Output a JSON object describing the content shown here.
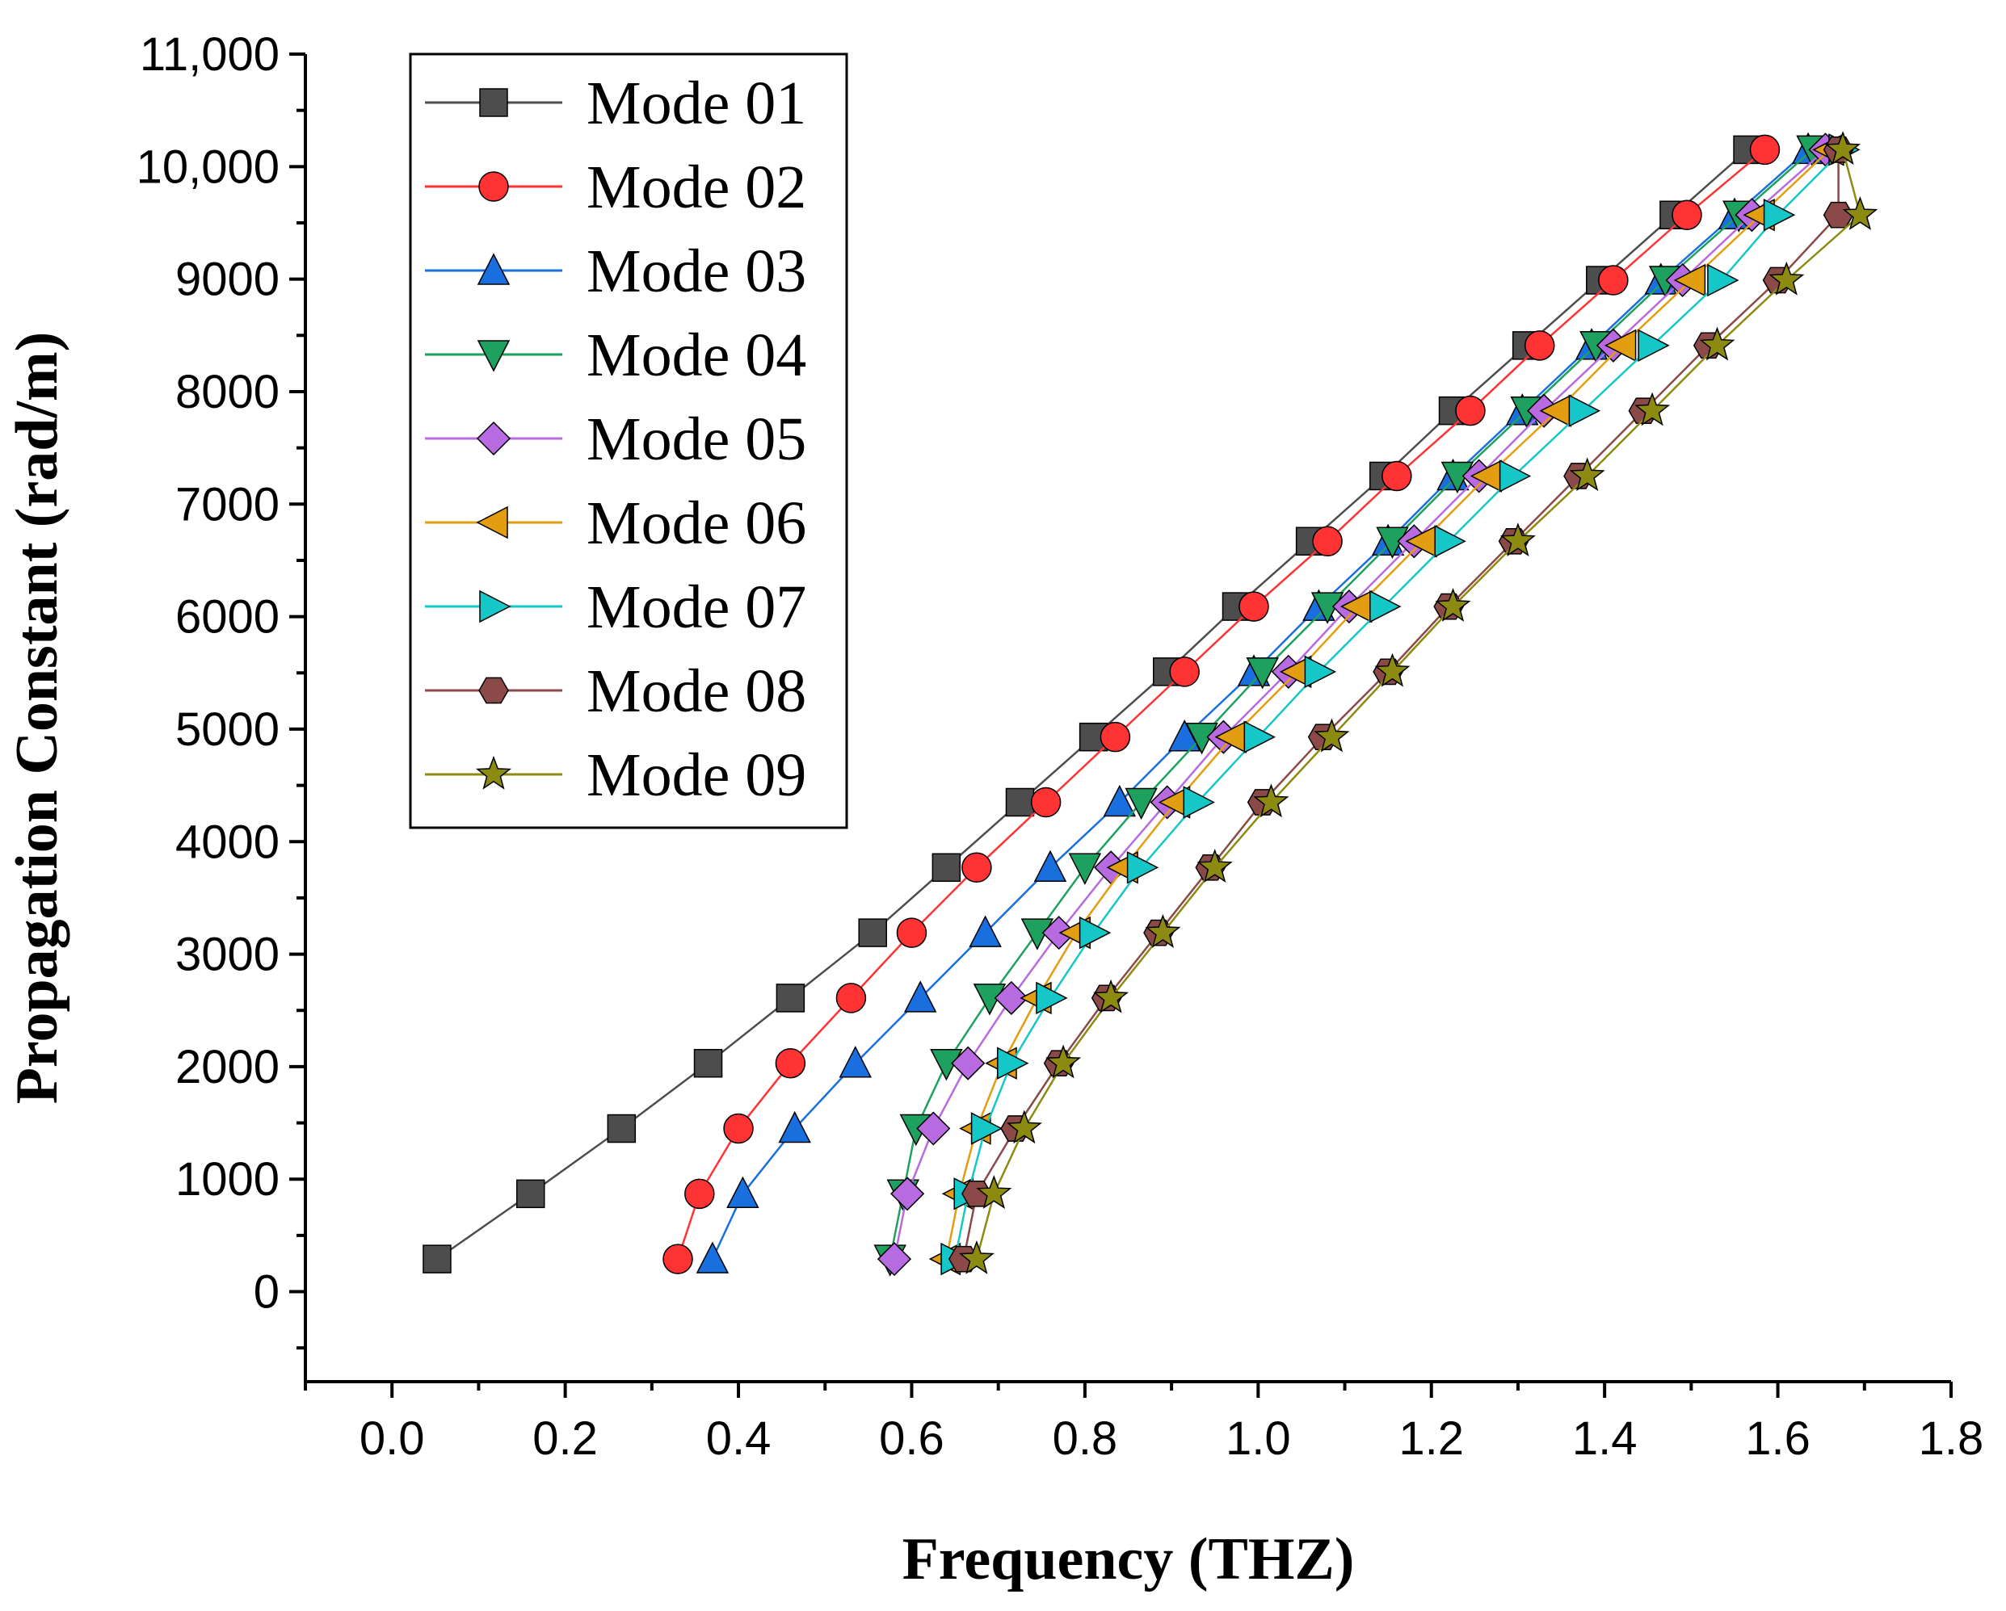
{
  "chart_data": {
    "type": "line",
    "title": "",
    "xlabel": "Frequency (THZ)",
    "ylabel": "Propagation Constant (rad/m)",
    "xlim": [
      -0.1,
      1.8
    ],
    "ylim": [
      -800,
      11000
    ],
    "x_ticks": [
      0.0,
      0.2,
      0.4,
      0.6,
      0.8,
      1.0,
      1.2,
      1.4,
      1.6,
      1.8
    ],
    "x_tick_labels": [
      "0.0",
      "0.2",
      "0.4",
      "0.6",
      "0.8",
      "1.0",
      "1.2",
      "1.4",
      "1.6",
      "1.8"
    ],
    "y_ticks": [
      0,
      1000,
      2000,
      3000,
      4000,
      5000,
      6000,
      7000,
      8000,
      9000,
      10000,
      11000
    ],
    "y_tick_labels": [
      "0",
      "1000",
      "2000",
      "3000",
      "4000",
      "5000",
      "6000",
      "7000",
      "8000",
      "9000",
      "10,000",
      "11,000"
    ],
    "legend_position": "top-left",
    "grid": false,
    "y": [
      290,
      870,
      1450,
      2030,
      2610,
      3190,
      3770,
      4350,
      4930,
      5510,
      6090,
      6670,
      7250,
      7830,
      8410,
      8990,
      9570,
      10150
    ],
    "series": [
      {
        "name": "Mode 01",
        "color": "#4d4d4d",
        "marker": "square",
        "x": [
          0.052,
          0.16,
          0.265,
          0.365,
          0.46,
          0.555,
          0.64,
          0.725,
          0.81,
          0.895,
          0.975,
          1.06,
          1.145,
          1.225,
          1.31,
          1.395,
          1.48,
          1.565
        ]
      },
      {
        "name": "Mode 02",
        "color": "#ff3333",
        "marker": "circle",
        "x": [
          0.33,
          0.355,
          0.4,
          0.46,
          0.53,
          0.6,
          0.675,
          0.755,
          0.835,
          0.915,
          0.995,
          1.08,
          1.16,
          1.245,
          1.325,
          1.41,
          1.495,
          1.585
        ]
      },
      {
        "name": "Mode 03",
        "color": "#1a6fdf",
        "marker": "triangle-up",
        "x": [
          0.37,
          0.405,
          0.465,
          0.535,
          0.61,
          0.685,
          0.76,
          0.84,
          0.915,
          0.995,
          1.07,
          1.15,
          1.225,
          1.305,
          1.385,
          1.465,
          1.55,
          1.635
        ]
      },
      {
        "name": "Mode 04",
        "color": "#1ea05e",
        "marker": "triangle-down",
        "x": [
          0.575,
          0.59,
          0.605,
          0.64,
          0.69,
          0.745,
          0.8,
          0.865,
          0.935,
          1.005,
          1.08,
          1.155,
          1.23,
          1.31,
          1.39,
          1.47,
          1.555,
          1.64
        ]
      },
      {
        "name": "Mode 05",
        "color": "#b86ae0",
        "marker": "diamond",
        "x": [
          0.58,
          0.595,
          0.625,
          0.665,
          0.715,
          0.77,
          0.83,
          0.895,
          0.96,
          1.035,
          1.105,
          1.18,
          1.255,
          1.33,
          1.41,
          1.49,
          1.57,
          1.655
        ]
      },
      {
        "name": "Mode 06",
        "color": "#e39d10",
        "marker": "triangle-left",
        "x": [
          0.64,
          0.655,
          0.675,
          0.705,
          0.745,
          0.79,
          0.845,
          0.905,
          0.97,
          1.045,
          1.115,
          1.19,
          1.265,
          1.345,
          1.42,
          1.5,
          1.58,
          1.66
        ]
      },
      {
        "name": "Mode 07",
        "color": "#16c7c7",
        "marker": "triangle-right",
        "x": [
          0.65,
          0.665,
          0.685,
          0.715,
          0.76,
          0.81,
          0.865,
          0.93,
          1.0,
          1.07,
          1.145,
          1.22,
          1.295,
          1.375,
          1.455,
          1.535,
          1.6,
          1.675
        ]
      },
      {
        "name": "Mode 08",
        "color": "#8b4a47",
        "marker": "hexagon",
        "x": [
          0.66,
          0.675,
          0.72,
          0.77,
          0.825,
          0.885,
          0.945,
          1.005,
          1.075,
          1.15,
          1.22,
          1.295,
          1.37,
          1.445,
          1.52,
          1.6,
          1.67,
          1.67
        ]
      },
      {
        "name": "Mode 09",
        "color": "#8c8a10",
        "marker": "star",
        "x": [
          0.675,
          0.695,
          0.73,
          0.775,
          0.83,
          0.89,
          0.95,
          1.015,
          1.085,
          1.155,
          1.225,
          1.3,
          1.38,
          1.455,
          1.53,
          1.61,
          1.695,
          1.675
        ]
      }
    ]
  }
}
